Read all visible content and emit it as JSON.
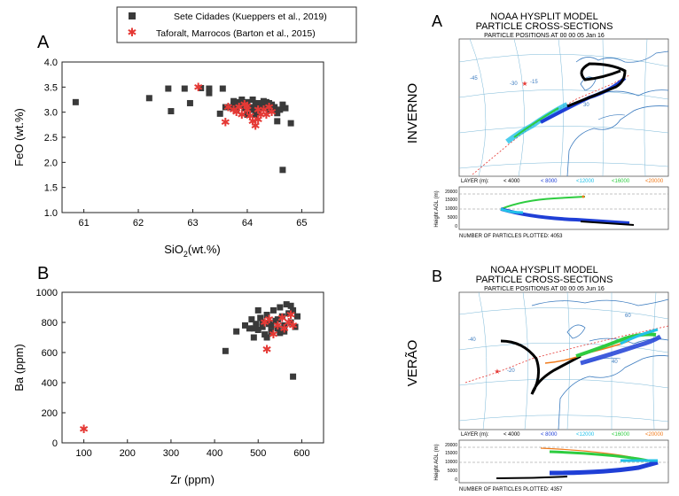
{
  "legend": {
    "entries": [
      {
        "name": "Sete Cidades (Kueppers et al., 2019)",
        "color": "#3a3a3a",
        "marker": "square"
      },
      {
        "name": "Taforalt, Marrocos (Barton et al., 2015)",
        "color": "#e53935",
        "marker": "star"
      }
    ]
  },
  "chart_data": [
    {
      "panel": "A",
      "type": "scatter",
      "xlabel": "SiO2(wt.%)",
      "ylabel": "FeO (wt.%)",
      "xlim": [
        60.6,
        65.4
      ],
      "ylim": [
        1.0,
        4.0
      ],
      "xticks": [
        61,
        62,
        63,
        64,
        65
      ],
      "yticks": [
        1.0,
        1.5,
        2.0,
        2.5,
        3.0,
        3.5,
        4.0
      ],
      "xtick_labels": [
        "61",
        "62",
        "63",
        "64",
        "65"
      ],
      "ytick_labels": [
        "1.0",
        "1.5",
        "2.0",
        "2.5",
        "3.0",
        "3.5",
        "4.0"
      ],
      "series": [
        {
          "name": "Sete Cidades (Kueppers et al., 2019)",
          "points": [
            [
              60.85,
              3.2
            ],
            [
              62.2,
              3.28
            ],
            [
              62.55,
              3.47
            ],
            [
              62.6,
              3.02
            ],
            [
              62.85,
              3.47
            ],
            [
              62.95,
              3.18
            ],
            [
              63.15,
              3.48
            ],
            [
              63.3,
              3.47
            ],
            [
              63.55,
              3.47
            ],
            [
              63.3,
              3.38
            ],
            [
              63.5,
              2.97
            ],
            [
              63.6,
              3.1
            ],
            [
              63.7,
              3.1
            ],
            [
              63.75,
              3.15
            ],
            [
              63.8,
              3.05
            ],
            [
              63.85,
              3.2
            ],
            [
              63.9,
              3.25
            ],
            [
              63.9,
              3.15
            ],
            [
              63.95,
              3.08
            ],
            [
              64.0,
              3.2
            ],
            [
              64.05,
              3.1
            ],
            [
              64.1,
              3.25
            ],
            [
              64.1,
              3.05
            ],
            [
              64.15,
              3.15
            ],
            [
              64.2,
              3.18
            ],
            [
              64.25,
              3.08
            ],
            [
              64.3,
              3.12
            ],
            [
              64.35,
              3.2
            ],
            [
              64.4,
              3.05
            ],
            [
              64.45,
              3.15
            ],
            [
              64.5,
              3.1
            ],
            [
              64.55,
              2.98
            ],
            [
              64.6,
              3.05
            ],
            [
              64.65,
              3.15
            ],
            [
              64.7,
              3.08
            ],
            [
              64.8,
              2.78
            ],
            [
              64.55,
              2.82
            ],
            [
              64.65,
              1.85
            ],
            [
              63.75,
              3.22
            ],
            [
              64.2,
              3.0
            ],
            [
              64.0,
              2.95
            ],
            [
              63.95,
              3.12
            ],
            [
              64.3,
              3.22
            ],
            [
              64.15,
              2.95
            ],
            [
              64.5,
              3.05
            ],
            [
              64.4,
              3.18
            ]
          ]
        },
        {
          "name": "Taforalt, Marrocos (Barton et al., 2015)",
          "points": [
            [
              63.1,
              3.5
            ],
            [
              63.6,
              2.8
            ],
            [
              63.65,
              3.1
            ],
            [
              63.75,
              3.05
            ],
            [
              63.8,
              3.0
            ],
            [
              63.85,
              3.1
            ],
            [
              63.9,
              2.95
            ],
            [
              63.95,
              3.15
            ],
            [
              64.0,
              3.05
            ],
            [
              64.05,
              2.92
            ],
            [
              64.1,
              2.82
            ],
            [
              64.15,
              2.73
            ],
            [
              64.2,
              2.85
            ],
            [
              64.25,
              2.95
            ],
            [
              64.3,
              3.05
            ],
            [
              64.35,
              2.95
            ],
            [
              64.4,
              3.1
            ],
            [
              64.45,
              3.0
            ],
            [
              64.0,
              3.12
            ],
            [
              64.2,
              3.05
            ]
          ]
        }
      ]
    },
    {
      "panel": "B",
      "type": "scatter",
      "xlabel": "Zr (ppm)",
      "ylabel": "Ba (ppm)",
      "xlim": [
        50,
        650
      ],
      "ylim": [
        0,
        1000
      ],
      "xticks": [
        100,
        200,
        300,
        400,
        500,
        600
      ],
      "yticks": [
        0,
        200,
        400,
        600,
        800,
        1000
      ],
      "xtick_labels": [
        "100",
        "200",
        "300",
        "400",
        "500",
        "600"
      ],
      "ytick_labels": [
        "0",
        "200",
        "400",
        "600",
        "800",
        "1000"
      ],
      "series": [
        {
          "name": "Sete Cidades (Kueppers et al., 2019)",
          "points": [
            [
              425,
              610
            ],
            [
              450,
              740
            ],
            [
              470,
              780
            ],
            [
              480,
              760
            ],
            [
              485,
              820
            ],
            [
              490,
              700
            ],
            [
              495,
              790
            ],
            [
              500,
              750
            ],
            [
              505,
              830
            ],
            [
              510,
              770
            ],
            [
              515,
              720
            ],
            [
              520,
              850
            ],
            [
              525,
              790
            ],
            [
              530,
              740
            ],
            [
              535,
              880
            ],
            [
              540,
              810
            ],
            [
              545,
              760
            ],
            [
              550,
              900
            ],
            [
              555,
              840
            ],
            [
              560,
              780
            ],
            [
              565,
              920
            ],
            [
              570,
              860
            ],
            [
              575,
              800
            ],
            [
              580,
              880
            ],
            [
              585,
              770
            ],
            [
              590,
              840
            ],
            [
              580,
              440
            ],
            [
              500,
              880
            ],
            [
              520,
              700
            ],
            [
              545,
              820
            ],
            [
              560,
              740
            ],
            [
              575,
              910
            ],
            [
              490,
              760
            ],
            [
              530,
              780
            ],
            [
              550,
              730
            ],
            [
              510,
              800
            ]
          ]
        },
        {
          "name": "Taforalt, Marrocos (Barton et al., 2015)",
          "points": [
            [
              100,
              90
            ],
            [
              520,
              620
            ],
            [
              515,
              800
            ],
            [
              535,
              720
            ],
            [
              545,
              780
            ],
            [
              555,
              830
            ],
            [
              560,
              760
            ],
            [
              570,
              800
            ],
            [
              575,
              850
            ],
            [
              580,
              780
            ],
            [
              525,
              820
            ]
          ]
        }
      ]
    },
    {
      "panel": "A",
      "type": "map",
      "side_label": "INVERNO",
      "title": "NOAA HYSPLIT MODEL",
      "subtitle": "PARTICLE CROSS-SECTIONS",
      "positions": "PARTICLE POSITIONS AT 00 00   05 Jan 16",
      "layer_legend": {
        "label": "LAYER (m):",
        "items": [
          {
            "text": "< 4000",
            "color": "#000000"
          },
          {
            "text": "< 8000",
            "color": "#1f3fd6"
          },
          {
            "text": "<12000",
            "color": "#22c1e8"
          },
          {
            "text": "<16000",
            "color": "#2ecc40"
          },
          {
            "text": "<20000",
            "color": "#f07a1a"
          }
        ]
      },
      "height_axis": {
        "label": "Height AGL (m)",
        "ticks": [
          "20000",
          "15000",
          "10000",
          "5000",
          "0"
        ]
      },
      "particles": "NUMBER OF PARTICLES PLOTTED:   4053",
      "grid_labels": [
        "-45",
        "-30",
        "-15",
        "30"
      ]
    },
    {
      "panel": "B",
      "type": "map",
      "side_label": "VERÃO",
      "title": "NOAA HYSPLIT MODEL",
      "subtitle": "PARTICLE CROSS-SECTIONS",
      "positions": "PARTICLE POSITIONS AT 00 00   05 Jun 16",
      "layer_legend": {
        "label": "LAYER (m):",
        "items": [
          {
            "text": "< 4000",
            "color": "#000000"
          },
          {
            "text": "< 8000",
            "color": "#1f3fd6"
          },
          {
            "text": "<12000",
            "color": "#22c1e8"
          },
          {
            "text": "<16000",
            "color": "#2ecc40"
          },
          {
            "text": "<20000",
            "color": "#f07a1a"
          }
        ]
      },
      "height_axis": {
        "label": "Height AGL (m)",
        "ticks": [
          "20000",
          "15000",
          "10000",
          "5000",
          "0"
        ]
      },
      "particles": "NUMBER OF PARTICLES PLOTTED:   4357",
      "grid_labels": [
        "-40",
        "-20",
        "40",
        "60"
      ]
    }
  ]
}
